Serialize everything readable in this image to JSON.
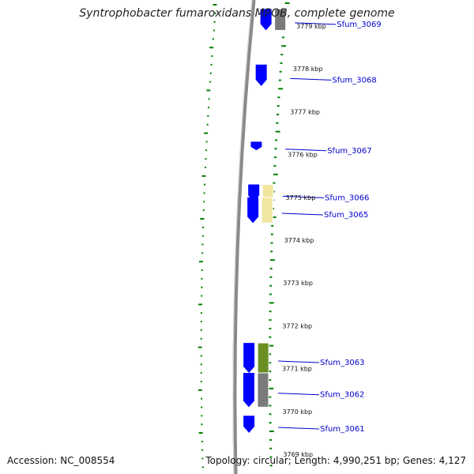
{
  "title": "Syntrophobacter fumaroxidans MPOB, complete genome",
  "footer": {
    "accession": "Accession: NC_008554",
    "summary": "Topology: circular; Length: 4,990,251 bp; Genes: 4,127"
  },
  "colors": {
    "forward_gene": "#0000ff",
    "backbone": "#888888",
    "tick": "#008000",
    "gene_label": "#0000cc",
    "cog_gray": "#7a7a7a",
    "cog_yellow": "#f0e6a0",
    "cog_olive": "#6b8e23",
    "cog_cyan": "#00e5ee"
  },
  "chart_data": {
    "type": "genome-map",
    "kbp_ticks": [
      {
        "kbp": 3779,
        "label": "3779 kbp"
      },
      {
        "kbp": 3778,
        "label": "3778 kbp"
      },
      {
        "kbp": 3777,
        "label": "3777 kbp"
      },
      {
        "kbp": 3776,
        "label": "3776 kbp"
      },
      {
        "kbp": 3775,
        "label": "3775 kbp"
      },
      {
        "kbp": 3774,
        "label": "3774 kbp"
      },
      {
        "kbp": 3773,
        "label": "3773 kbp"
      },
      {
        "kbp": 3772,
        "label": "3772 kbp"
      },
      {
        "kbp": 3771,
        "label": "3771 kbp"
      },
      {
        "kbp": 3770,
        "label": "3770 kbp"
      },
      {
        "kbp": 3769,
        "label": "3769 kbp"
      }
    ],
    "genes": [
      {
        "label": "Sfum_3069",
        "start_kbp": 3778.9,
        "end_kbp": 3779.4,
        "cog": "cog_gray"
      },
      {
        "label": "Sfum_3068",
        "start_kbp": 3777.6,
        "end_kbp": 3778.1,
        "cog": null
      },
      {
        "label": "Sfum_3067",
        "start_kbp": 3776.1,
        "end_kbp": 3776.3,
        "cog": null
      },
      {
        "label": "Sfum_3066",
        "start_kbp": 3774.9,
        "end_kbp": 3775.3,
        "cog": "cog_yellow"
      },
      {
        "label": "Sfum_3065",
        "start_kbp": 3774.4,
        "end_kbp": 3775.0,
        "cog": "cog_yellow"
      },
      {
        "label": "Sfum_3063",
        "start_kbp": 3770.9,
        "end_kbp": 3771.6,
        "cog": "cog_olive"
      },
      {
        "label": "Sfum_3062",
        "start_kbp": 3770.1,
        "end_kbp": 3770.9,
        "cog": "cog_gray"
      },
      {
        "label": "Sfum_3061",
        "start_kbp": 3769.5,
        "end_kbp": 3769.9,
        "cog": null
      }
    ]
  }
}
